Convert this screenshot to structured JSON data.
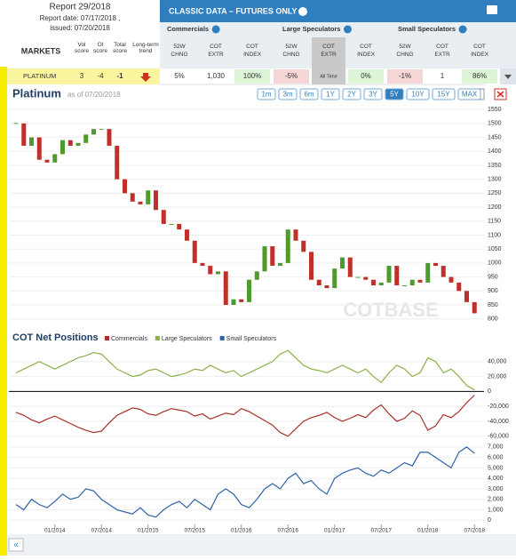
{
  "report": {
    "title": "Report 29/2018",
    "report_date": "Report date: 07/17/2018 ,",
    "issued": "issued: 07/20/2018"
  },
  "header": {
    "title": "CLASSIC DATA – FUTURES ONLY"
  },
  "columns": {
    "markets": "MARKETS",
    "vol": "Vol score",
    "oi": "OI score",
    "total": "Total score",
    "trend": "Long-term trend",
    "groups": [
      {
        "name": "Commercials",
        "cols": [
          "52W CHNG",
          "COT EXTR",
          "COT INDEX"
        ]
      },
      {
        "name": "Large Speculators",
        "cols": [
          "52W CHNG",
          "COT EXTR",
          "COT INDEX"
        ]
      },
      {
        "name": "Small Speculators",
        "cols": [
          "52W CHNG",
          "COT EXTR",
          "COT INDEX"
        ]
      }
    ]
  },
  "row": {
    "market": "PLATINUM",
    "vol": 3,
    "oi": -4,
    "total": -1,
    "cells": [
      "5%",
      "1,030",
      "100%",
      "-5%",
      "All Time",
      "0%",
      "-1%",
      "1",
      "86%"
    ]
  },
  "toolbar": {
    "ranges": [
      "1m",
      "3m",
      "6m",
      "1Y",
      "2Y",
      "3Y",
      "5Y",
      "10Y",
      "15Y",
      "MAX"
    ],
    "active": "5Y",
    "watermark": "COTBASE"
  },
  "chart_data": [
    {
      "type": "candlestick",
      "title": "Platinum",
      "subtitle": "as of 07/20/2018",
      "x": [
        "2013-08",
        "2013-09",
        "2013-10",
        "2013-11",
        "2013-12",
        "2014-01",
        "2014-02",
        "2014-03",
        "2014-04",
        "2014-05",
        "2014-06",
        "2014-07",
        "2014-08",
        "2014-09",
        "2014-10",
        "2014-11",
        "2014-12",
        "2015-01",
        "2015-02",
        "2015-03",
        "2015-04",
        "2015-05",
        "2015-06",
        "2015-07",
        "2015-08",
        "2015-09",
        "2015-10",
        "2015-11",
        "2015-12",
        "2016-01",
        "2016-02",
        "2016-03",
        "2016-04",
        "2016-05",
        "2016-06",
        "2016-07",
        "2016-08",
        "2016-09",
        "2016-10",
        "2016-11",
        "2016-12",
        "2017-01",
        "2017-02",
        "2017-03",
        "2017-04",
        "2017-05",
        "2017-06",
        "2017-07",
        "2017-08",
        "2017-09",
        "2017-10",
        "2017-11",
        "2017-12",
        "2018-01",
        "2018-02",
        "2018-03",
        "2018-04",
        "2018-05",
        "2018-06",
        "2018-07"
      ],
      "values": [
        1500,
        1420,
        1450,
        1370,
        1360,
        1390,
        1440,
        1420,
        1430,
        1460,
        1480,
        1480,
        1420,
        1300,
        1250,
        1220,
        1210,
        1260,
        1190,
        1140,
        1140,
        1120,
        1080,
        1000,
        990,
        960,
        970,
        850,
        870,
        860,
        940,
        970,
        1060,
        990,
        1000,
        1120,
        1080,
        1040,
        940,
        920,
        910,
        980,
        1020,
        950,
        950,
        940,
        920,
        930,
        990,
        920,
        920,
        940,
        930,
        1000,
        990,
        950,
        930,
        900,
        860,
        820
      ],
      "up_color": "#4f9a2c",
      "down_color": "#c0302a",
      "ylim": [
        780,
        1560
      ],
      "yticks": [
        800,
        850,
        900,
        950,
        1000,
        1050,
        1100,
        1150,
        1200,
        1250,
        1300,
        1350,
        1400,
        1450,
        1500,
        1550
      ]
    },
    {
      "type": "line",
      "title": "COT Net Positions",
      "series": [
        {
          "name": "Commercials",
          "color": "#a8302c",
          "values": [
            -28000,
            -32000,
            -38000,
            -42000,
            -37000,
            -33000,
            -38000,
            -43000,
            -48000,
            -52000,
            -55000,
            -53000,
            -42000,
            -32000,
            -27000,
            -22000,
            -24000,
            -30000,
            -32000,
            -27000,
            -23000,
            -25000,
            -27000,
            -33000,
            -30000,
            -37000,
            -33000,
            -29000,
            -31000,
            -23000,
            -27000,
            -33000,
            -39000,
            -45000,
            -55000,
            -60000,
            -50000,
            -40000,
            -35000,
            -32000,
            -28000,
            -35000,
            -40000,
            -36000,
            -31000,
            -35000,
            -25000,
            -18000,
            -30000,
            -40000,
            -36000,
            -26000,
            -32000,
            -52000,
            -46000,
            -31000,
            -35000,
            -27000,
            -15000,
            -5000
          ]
        },
        {
          "name": "Large Speculators",
          "color": "#8cb04a",
          "values": [
            25000,
            30000,
            35000,
            40000,
            35000,
            30000,
            35000,
            40000,
            45000,
            48000,
            52000,
            50000,
            40000,
            30000,
            25000,
            20000,
            22000,
            28000,
            30000,
            25000,
            20000,
            22000,
            25000,
            30000,
            28000,
            35000,
            30000,
            25000,
            28000,
            20000,
            25000,
            30000,
            35000,
            40000,
            50000,
            55000,
            45000,
            35000,
            30000,
            28000,
            25000,
            30000,
            35000,
            30000,
            25000,
            30000,
            20000,
            12000,
            25000,
            35000,
            30000,
            20000,
            25000,
            45000,
            40000,
            25000,
            30000,
            20000,
            8000,
            2000
          ]
        }
      ],
      "ylim": [
        -65000,
        54000
      ],
      "yticks": [
        {
          "value": 40000,
          "label": "40,000"
        },
        {
          "value": 20000,
          "label": "20,000"
        },
        0,
        {
          "value": -20000,
          "label": "-20,000"
        },
        {
          "value": -40000,
          "label": "-40,000"
        },
        {
          "value": -60000,
          "label": "-60,000"
        }
      ]
    },
    {
      "type": "line",
      "series": [
        {
          "name": "Small Speculators",
          "color": "#2f62a6",
          "values": [
            1500,
            1000,
            2000,
            1500,
            1200,
            1800,
            2500,
            2000,
            2200,
            3000,
            2800,
            2000,
            1500,
            1000,
            800,
            600,
            1200,
            500,
            300,
            1000,
            1500,
            1800,
            1200,
            2000,
            1500,
            1000,
            2500,
            3000,
            2500,
            1500,
            1200,
            2000,
            3000,
            3500,
            3000,
            4000,
            4500,
            3500,
            3800,
            3000,
            2500,
            4000,
            4500,
            4800,
            5000,
            4500,
            4200,
            4800,
            4500,
            5000,
            5500,
            5200,
            6500,
            6500,
            6000,
            5500,
            5000,
            6500,
            7000,
            6400
          ]
        }
      ],
      "ylim": [
        -400,
        7500
      ],
      "yticks": [
        {
          "value": 7000,
          "label": "7,000"
        },
        {
          "value": 6000,
          "label": "6,000"
        },
        {
          "value": 5000,
          "label": "5,000"
        },
        {
          "value": 4000,
          "label": "4,000"
        },
        {
          "value": 3000,
          "label": "3,000"
        },
        {
          "value": 2000,
          "label": "2,000"
        },
        {
          "value": 1000,
          "label": "1,000"
        },
        0
      ],
      "xticks": [
        {
          "value": "2014-01",
          "label": "01/2014"
        },
        {
          "value": "2014-07",
          "label": "07/2014"
        },
        {
          "value": "2015-01",
          "label": "01/2015"
        },
        {
          "value": "2015-07",
          "label": "07/2015"
        },
        {
          "value": "2016-01",
          "label": "01/2016"
        },
        {
          "value": "2016-07",
          "label": "07/2016"
        },
        {
          "value": "2017-01",
          "label": "01/2017"
        },
        {
          "value": "2017-07",
          "label": "07/2017"
        },
        {
          "value": "2018-01",
          "label": "01/2018"
        },
        {
          "value": "2018-07",
          "label": "07/2018"
        }
      ]
    }
  ]
}
